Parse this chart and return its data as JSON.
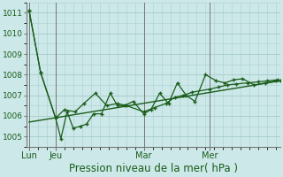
{
  "title": "Pression niveau de la mer( hPa )",
  "bg_color": "#cce8e8",
  "grid_color": "#aacfcf",
  "line_color": "#1a5c1a",
  "ylim": [
    1004.5,
    1011.5
  ],
  "yticks": [
    1005,
    1006,
    1007,
    1008,
    1009,
    1010,
    1011
  ],
  "xtick_labels": [
    "Lun",
    "Jeu",
    "Mar",
    "Mer"
  ],
  "xtick_positions": [
    0,
    30,
    130,
    205
  ],
  "vlines": [
    0,
    30,
    130,
    205
  ],
  "xlim": [
    -3,
    285
  ],
  "trend_x": [
    0,
    285
  ],
  "trend_y": [
    1005.7,
    1007.7
  ],
  "line1_x": [
    0,
    13,
    30,
    40,
    52,
    62,
    75,
    88,
    100,
    110,
    130,
    142,
    155,
    165,
    175,
    185,
    205,
    215,
    225,
    235,
    248,
    260,
    270,
    282
  ],
  "line1_y": [
    1011.1,
    1008.1,
    1005.9,
    1006.3,
    1006.2,
    1006.6,
    1007.1,
    1006.5,
    1006.6,
    1006.5,
    1006.2,
    1006.4,
    1006.6,
    1006.9,
    1007.0,
    1007.15,
    1007.3,
    1007.4,
    1007.5,
    1007.55,
    1007.6,
    1007.65,
    1007.7,
    1007.75
  ],
  "line2_x": [
    0,
    13,
    30,
    36,
    43,
    50,
    58,
    65,
    73,
    82,
    92,
    100,
    108,
    118,
    130,
    138,
    148,
    158,
    168,
    178,
    188,
    200,
    212,
    222,
    232,
    242,
    255,
    268,
    280,
    285
  ],
  "line2_y": [
    1011.1,
    1008.1,
    1005.9,
    1004.9,
    1006.2,
    1005.4,
    1005.5,
    1005.6,
    1006.1,
    1006.1,
    1007.1,
    1006.5,
    1006.5,
    1006.7,
    1006.1,
    1006.3,
    1007.1,
    1006.6,
    1007.6,
    1007.0,
    1006.7,
    1008.0,
    1007.7,
    1007.6,
    1007.75,
    1007.8,
    1007.5,
    1007.6,
    1007.7,
    1007.7
  ],
  "ylabel_fontsize": 6.5,
  "xlabel_fontsize": 8.5,
  "xtick_fontsize": 7,
  "ytick_fontsize": 6.5
}
